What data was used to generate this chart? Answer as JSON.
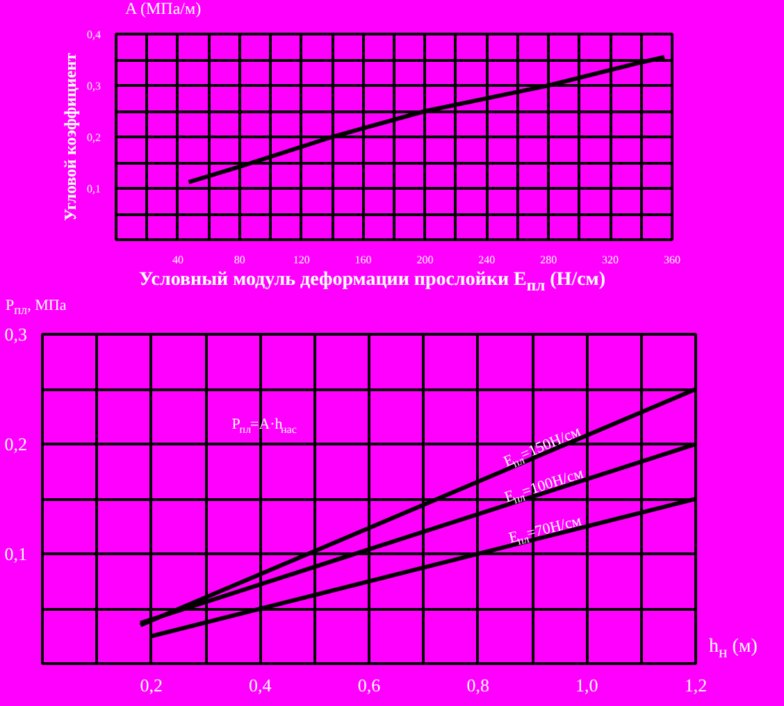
{
  "chart_data": [
    {
      "type": "line",
      "title": "A (МПа/м)",
      "ylabel": "Угловой коэффициент",
      "xlabel": "Условный модуль деформации прослойки     E$_{пл}$ (Н/см)",
      "x": [
        47,
        80,
        140,
        200,
        280,
        340,
        355
      ],
      "series": [
        {
          "color": "#000000",
          "values": [
            0.112,
            0.142,
            0.2,
            0.25,
            0.3,
            0.345,
            0.355
          ]
        }
      ],
      "xlim": [
        0,
        360
      ],
      "ylim": [
        0,
        0.4
      ],
      "xticks": [
        {
          "value": 20,
          "label": null
        },
        40,
        {
          "value": 60,
          "label": null
        },
        80,
        {
          "value": 100,
          "label": null
        },
        120,
        {
          "value": 140,
          "label": null
        },
        160,
        {
          "value": 180,
          "label": null
        },
        200,
        {
          "value": 220,
          "label": null
        },
        240,
        {
          "value": 260,
          "label": null
        },
        280,
        {
          "value": 300,
          "label": null
        },
        320,
        {
          "value": 340,
          "label": null
        },
        360
      ],
      "yticks": [
        {
          "value": 0.05,
          "label": null
        },
        {
          "value": 0.1,
          "label": "0,1"
        },
        {
          "value": 0.15,
          "label": null
        },
        {
          "value": 0.2,
          "label": "0,2"
        },
        {
          "value": 0.25,
          "label": null
        },
        {
          "value": 0.3,
          "label": "0,3"
        },
        {
          "value": 0.35,
          "label": null
        },
        {
          "value": 0.4,
          "label": "0,4"
        }
      ],
      "grid": true,
      "marker": "none",
      "line_style": "solid"
    },
    {
      "type": "line",
      "ylabel": "P$_{пл}$, МПа",
      "xlabel": "h$_{н}$ (м)",
      "annotations": [
        "P$_{пл}$=A·h$_{нас}$"
      ],
      "series": [
        {
          "name": "E$_{пл}$=150Н/см",
          "color": "#000000",
          "x": [
            0.18,
            1.2
          ],
          "values": [
            0.035,
            0.25
          ]
        },
        {
          "name": "E$_{пл}$=100Н/см",
          "color": "#000000",
          "x": [
            0.18,
            1.2
          ],
          "values": [
            0.037,
            0.2
          ]
        },
        {
          "name": "E$_{пл}$=70Н/см",
          "color": "#000000",
          "x": [
            0.2,
            1.2
          ],
          "values": [
            0.025,
            0.15
          ]
        }
      ],
      "xlim": [
        0,
        1.2
      ],
      "ylim": [
        0,
        0.3
      ],
      "xticks": [
        {
          "value": 0.1,
          "label": null
        },
        {
          "value": 0.2,
          "label": "0,2"
        },
        {
          "value": 0.3,
          "label": null
        },
        {
          "value": 0.4,
          "label": "0,4"
        },
        {
          "value": 0.5,
          "label": null
        },
        {
          "value": 0.6,
          "label": "0,6"
        },
        {
          "value": 0.7,
          "label": null
        },
        {
          "value": 0.8,
          "label": "0,8"
        },
        {
          "value": 0.9,
          "label": null
        },
        {
          "value": 1.0,
          "label": "1,0"
        },
        {
          "value": 1.1,
          "label": null
        },
        {
          "value": 1.2,
          "label": "1,2"
        }
      ],
      "yticks": [
        {
          "value": 0.05,
          "label": null
        },
        {
          "value": 0.1,
          "label": "0,1"
        },
        {
          "value": 0.15,
          "label": null
        },
        {
          "value": 0.2,
          "label": "0,2"
        },
        {
          "value": 0.25,
          "label": null
        },
        {
          "value": 0.3,
          "label": "0,3"
        }
      ],
      "grid": true,
      "marker": "none",
      "line_style": "solid"
    }
  ]
}
